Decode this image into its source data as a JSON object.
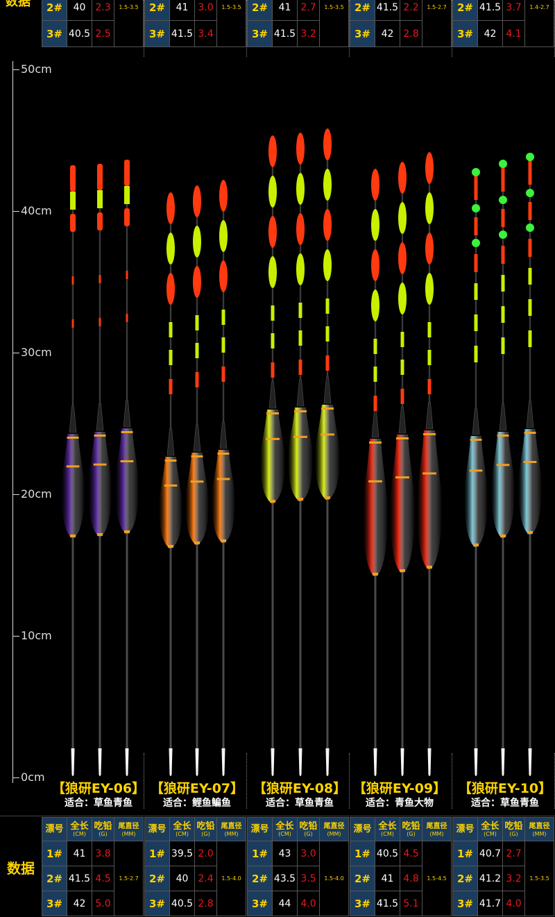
{
  "top_section": {
    "label_fragment": "数据",
    "groups": [
      {
        "rows": [
          {
            "num": "2#",
            "len": "40",
            "lead": "2.3"
          },
          {
            "num": "3#",
            "len": "40.5",
            "lead": "2.5"
          }
        ],
        "tip": "1.5-3.5"
      },
      {
        "rows": [
          {
            "num": "2#",
            "len": "41",
            "lead": "3.0"
          },
          {
            "num": "3#",
            "len": "41.5",
            "lead": "3.4"
          }
        ],
        "tip": "1.5-3.5"
      },
      {
        "rows": [
          {
            "num": "2#",
            "len": "41",
            "lead": "2.7"
          },
          {
            "num": "3#",
            "len": "41.5",
            "lead": "3.2"
          }
        ],
        "tip": "1.5-3.5"
      },
      {
        "rows": [
          {
            "num": "2#",
            "len": "41.5",
            "lead": "2.2"
          },
          {
            "num": "3#",
            "len": "42",
            "lead": "2.8"
          }
        ],
        "tip": "1.5-2.7"
      },
      {
        "rows": [
          {
            "num": "2#",
            "len": "41.5",
            "lead": "3.7"
          },
          {
            "num": "3#",
            "len": "42",
            "lead": "4.1"
          }
        ],
        "tip": "1.4-2.7"
      }
    ]
  },
  "ruler": {
    "labels": [
      "50cm",
      "40cm",
      "30cm",
      "20cm",
      "10cm",
      "0cm"
    ]
  },
  "colors": {
    "purple": "#5a2aa0",
    "orange": "#ff7d12",
    "yellow": "#d9ee1a",
    "red": "#ee2a14",
    "cyan": "#7fc6d6",
    "stripe_red": "#ff3a10",
    "stripe_lime": "#c8f000",
    "bead_green": "#3cf23c",
    "header_blue": "#1c3c5e",
    "gold": "#ffd400"
  },
  "products": [
    {
      "name": "【狼研EY-06】",
      "fit": "适合：草鱼青鱼",
      "body_color": "purple",
      "tip_style": "lime-band"
    },
    {
      "name": "【狼研EY-07】",
      "fit": "适合：鲤鱼鳊鱼",
      "body_color": "orange",
      "tip_style": "ovals-3"
    },
    {
      "name": "【狼研EY-08】",
      "fit": "适合：草鱼青鱼",
      "body_color": "yellow",
      "tip_style": "ovals-4"
    },
    {
      "name": "【狼研EY-09】",
      "fit": "适合：青鱼大物",
      "body_color": "red",
      "tip_style": "ovals-4"
    },
    {
      "name": "【狼研EY-10】",
      "fit": "适合：草鱼青鱼",
      "body_color": "cyan",
      "tip_style": "beads"
    }
  ],
  "bottom_section": {
    "label": "数据",
    "headers": {
      "num": "漂号",
      "len": "全长",
      "len_unit": "(CM)",
      "lead": "吃铅",
      "lead_unit": "(G)",
      "tip": "尾直径",
      "tip_unit": "(MM)"
    },
    "groups": [
      {
        "rows": [
          {
            "num": "1#",
            "len": "41",
            "lead": "3.8"
          },
          {
            "num": "2#",
            "len": "41.5",
            "lead": "4.5"
          },
          {
            "num": "3#",
            "len": "42",
            "lead": "5.0"
          }
        ],
        "tip": "1.5-2.7"
      },
      {
        "rows": [
          {
            "num": "1#",
            "len": "39.5",
            "lead": "2.0"
          },
          {
            "num": "2#",
            "len": "40",
            "lead": "2.4"
          },
          {
            "num": "3#",
            "len": "40.5",
            "lead": "2.8"
          }
        ],
        "tip": "1.5-4.0"
      },
      {
        "rows": [
          {
            "num": "1#",
            "len": "43",
            "lead": "3.0"
          },
          {
            "num": "2#",
            "len": "43.5",
            "lead": "3.5"
          },
          {
            "num": "3#",
            "len": "44",
            "lead": "4.0"
          }
        ],
        "tip": "1.5-4.0"
      },
      {
        "rows": [
          {
            "num": "1#",
            "len": "40.5",
            "lead": "4.5"
          },
          {
            "num": "2#",
            "len": "41",
            "lead": "4.8"
          },
          {
            "num": "3#",
            "len": "41.5",
            "lead": "5.1"
          }
        ],
        "tip": "1.5-4.5"
      },
      {
        "rows": [
          {
            "num": "1#",
            "len": "40.7",
            "lead": "2.7"
          },
          {
            "num": "2#",
            "len": "41.2",
            "lead": "3.2"
          },
          {
            "num": "3#",
            "len": "41.7",
            "lead": "4.0"
          }
        ],
        "tip": "1.5-3.5"
      }
    ]
  }
}
